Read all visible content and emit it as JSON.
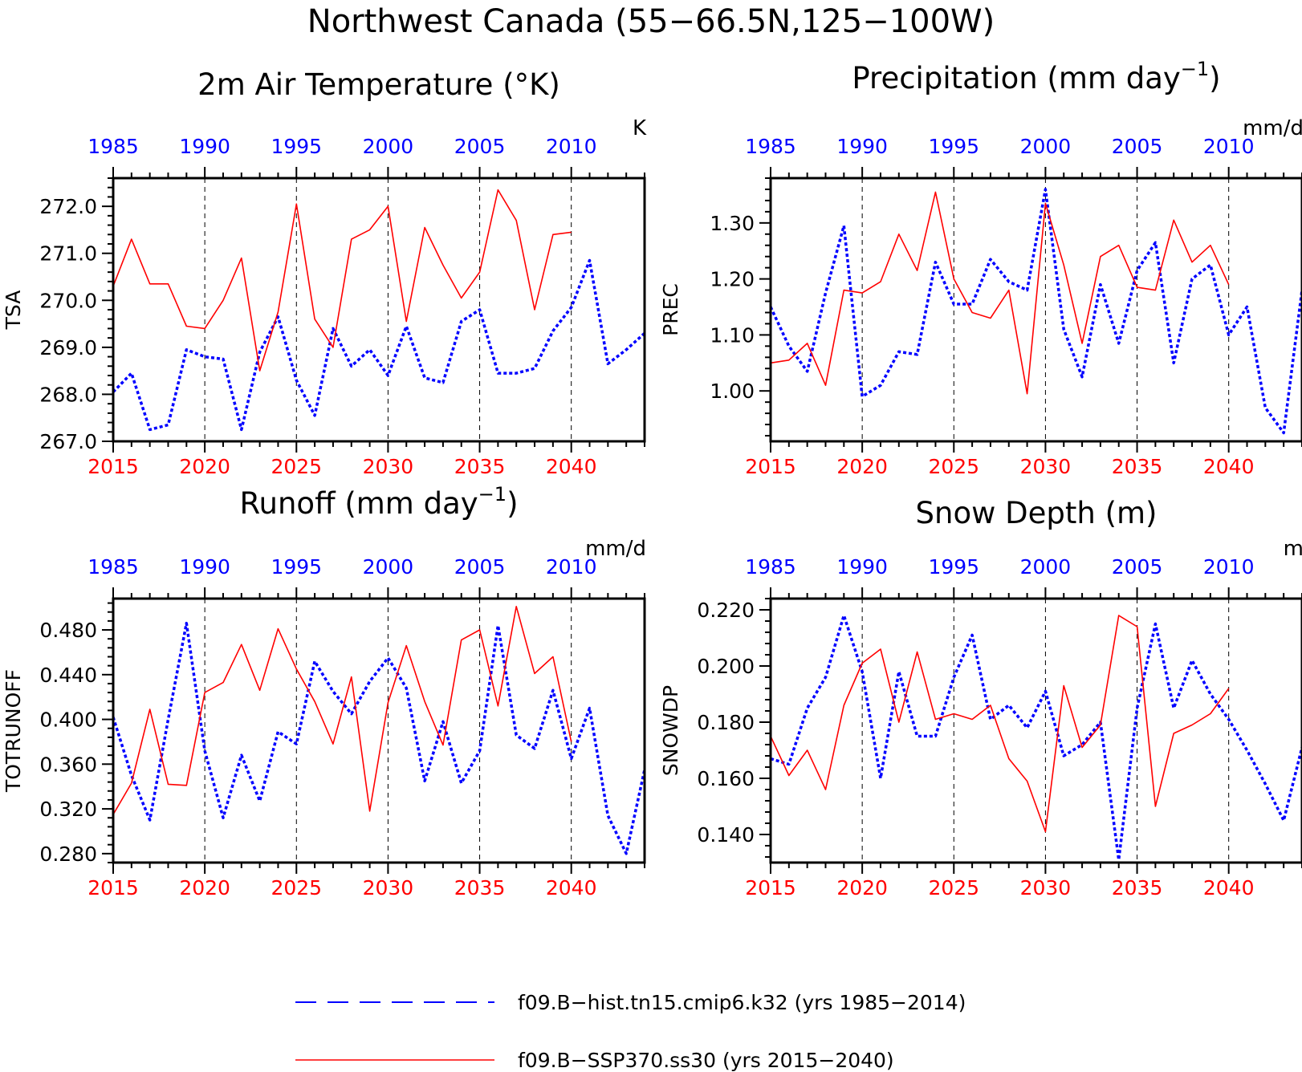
{
  "figure": {
    "title": "Northwest Canada (55−66.5N,125−100W)",
    "legend": {
      "placement": "bottom",
      "entries": [
        {
          "label": "f09.B−hist.tn15.cmip6.k32 (yrs 1985−2014)",
          "color": "#0000ff",
          "style": "dashed"
        },
        {
          "label": "f09.B−SSP370.ss30 (yrs 2015−2040)",
          "color": "#ff0000",
          "style": "solid"
        }
      ]
    }
  },
  "colors": {
    "historical": "#0000ff",
    "future": "#ff0000",
    "axes": "#000000"
  },
  "chart_data": [
    {
      "type": "line",
      "title": "2m Air Temperature (°K)",
      "title_sup": "",
      "title_suffix": "",
      "units": "K",
      "ylabel": "TSA",
      "ylim": [
        267.0,
        272.6
      ],
      "yticks": [
        267.0,
        268.0,
        269.0,
        270.0,
        271.0,
        272.0
      ],
      "ytick_labels": [
        "267.0",
        "268.0",
        "269.0",
        "270.0",
        "271.0",
        "272.0"
      ],
      "grid": "vertical dashed every 5 years",
      "x_bottom": {
        "range": [
          2015,
          2044
        ],
        "ticks": [
          2015,
          2020,
          2025,
          2030,
          2035,
          2040
        ],
        "color": "#ff0000"
      },
      "x_top": {
        "range": [
          1985,
          2014
        ],
        "ticks": [
          1985,
          1990,
          1995,
          2000,
          2005,
          2010
        ],
        "color": "#0000ff"
      },
      "series": [
        {
          "years": "1985-2014",
          "color": "#0000ff",
          "style": "dotted",
          "values": [
            268.05,
            268.45,
            267.25,
            267.35,
            268.95,
            268.8,
            268.75,
            267.25,
            268.9,
            269.65,
            268.3,
            267.55,
            269.4,
            268.6,
            268.95,
            268.4,
            269.45,
            268.35,
            268.25,
            269.55,
            269.8,
            268.45,
            268.45,
            268.55,
            269.35,
            269.85,
            270.85,
            268.65,
            268.95,
            269.3
          ]
        },
        {
          "years": "2015-2040",
          "color": "#ff0000",
          "style": "solid",
          "values": [
            270.3,
            271.3,
            270.35,
            270.35,
            269.45,
            269.4,
            270.0,
            270.9,
            268.5,
            269.75,
            272.05,
            269.6,
            269.0,
            271.3,
            271.5,
            272.0,
            269.55,
            271.55,
            270.75,
            270.05,
            270.6,
            272.35,
            271.7,
            269.8,
            271.4,
            271.45
          ]
        }
      ]
    },
    {
      "type": "line",
      "title": "Precipitation (mm day",
      "title_sup": "−1",
      "title_suffix": ")",
      "units": "mm/d",
      "ylabel": "PREC",
      "ylim": [
        0.91,
        1.38
      ],
      "yticks": [
        1.0,
        1.1,
        1.2,
        1.3
      ],
      "ytick_labels": [
        "1.00",
        "1.10",
        "1.20",
        "1.30"
      ],
      "grid": "vertical dashed every 5 years",
      "x_bottom": {
        "range": [
          2015,
          2044
        ],
        "ticks": [
          2015,
          2020,
          2025,
          2030,
          2035,
          2040
        ],
        "color": "#ff0000"
      },
      "x_top": {
        "range": [
          1985,
          2014
        ],
        "ticks": [
          1985,
          1990,
          1995,
          2000,
          2005,
          2010
        ],
        "color": "#0000ff"
      },
      "series": [
        {
          "years": "1985-2014",
          "color": "#0000ff",
          "style": "dotted",
          "values": [
            1.15,
            1.08,
            1.035,
            1.175,
            1.295,
            0.99,
            1.01,
            1.07,
            1.065,
            1.23,
            1.155,
            1.155,
            1.235,
            1.195,
            1.18,
            1.36,
            1.11,
            1.025,
            1.19,
            1.085,
            1.215,
            1.265,
            1.05,
            1.2,
            1.225,
            1.1,
            1.15,
            0.97,
            0.925,
            1.18
          ]
        },
        {
          "years": "2015-2040",
          "color": "#ff0000",
          "style": "solid",
          "values": [
            1.05,
            1.055,
            1.085,
            1.01,
            1.18,
            1.175,
            1.195,
            1.28,
            1.215,
            1.355,
            1.2,
            1.14,
            1.13,
            1.18,
            0.995,
            1.335,
            1.225,
            1.085,
            1.24,
            1.26,
            1.185,
            1.18,
            1.305,
            1.23,
            1.26,
            1.19
          ]
        }
      ]
    },
    {
      "type": "line",
      "title": "Runoff (mm day",
      "title_sup": "−1",
      "title_suffix": ")",
      "units": "mm/d",
      "ylabel": "TOTRUNOFF",
      "ylim": [
        0.272,
        0.508
      ],
      "yticks": [
        0.28,
        0.32,
        0.36,
        0.4,
        0.44,
        0.48
      ],
      "ytick_labels": [
        "0.280",
        "0.320",
        "0.360",
        "0.400",
        "0.440",
        "0.480"
      ],
      "grid": "vertical dashed every 5 years",
      "x_bottom": {
        "range": [
          2015,
          2044
        ],
        "ticks": [
          2015,
          2020,
          2025,
          2030,
          2035,
          2040
        ],
        "color": "#ff0000"
      },
      "x_top": {
        "range": [
          1985,
          2014
        ],
        "ticks": [
          1985,
          1990,
          1995,
          2000,
          2005,
          2010
        ],
        "color": "#0000ff"
      },
      "series": [
        {
          "years": "1985-2014",
          "color": "#0000ff",
          "style": "dotted",
          "values": [
            0.402,
            0.35,
            0.31,
            0.4,
            0.486,
            0.372,
            0.312,
            0.368,
            0.327,
            0.389,
            0.378,
            0.452,
            0.425,
            0.405,
            0.434,
            0.455,
            0.428,
            0.345,
            0.398,
            0.343,
            0.372,
            0.484,
            0.386,
            0.374,
            0.426,
            0.365,
            0.41,
            0.314,
            0.28,
            0.355
          ]
        },
        {
          "years": "2015-2040",
          "color": "#ff0000",
          "style": "solid",
          "values": [
            0.315,
            0.343,
            0.409,
            0.342,
            0.341,
            0.424,
            0.433,
            0.467,
            0.426,
            0.481,
            0.445,
            0.416,
            0.378,
            0.438,
            0.318,
            0.415,
            0.466,
            0.416,
            0.377,
            0.471,
            0.48,
            0.412,
            0.501,
            0.441,
            0.456,
            0.38
          ]
        }
      ]
    },
    {
      "type": "line",
      "title": "Snow Depth (m)",
      "title_sup": "",
      "title_suffix": "",
      "units": "m",
      "ylabel": "SNOWDP",
      "ylim": [
        0.13,
        0.224
      ],
      "yticks": [
        0.14,
        0.16,
        0.18,
        0.2,
        0.22
      ],
      "ytick_labels": [
        "0.140",
        "0.160",
        "0.180",
        "0.200",
        "0.220"
      ],
      "grid": "vertical dashed every 5 years",
      "x_bottom": {
        "range": [
          2015,
          2044
        ],
        "ticks": [
          2015,
          2020,
          2025,
          2030,
          2035,
          2040
        ],
        "color": "#ff0000"
      },
      "x_top": {
        "range": [
          1985,
          2014
        ],
        "ticks": [
          1985,
          1990,
          1995,
          2000,
          2005,
          2010
        ],
        "color": "#0000ff"
      },
      "series": [
        {
          "years": "1985-2014",
          "color": "#0000ff",
          "style": "dotted",
          "values": [
            0.167,
            0.165,
            0.185,
            0.196,
            0.218,
            0.198,
            0.16,
            0.198,
            0.175,
            0.175,
            0.196,
            0.211,
            0.181,
            0.186,
            0.178,
            0.191,
            0.168,
            0.172,
            0.18,
            0.131,
            0.185,
            0.215,
            0.185,
            0.202,
            0.19,
            0.181,
            0.17,
            0.158,
            0.145,
            0.171
          ]
        },
        {
          "years": "2015-2040",
          "color": "#ff0000",
          "style": "solid",
          "values": [
            0.175,
            0.161,
            0.17,
            0.156,
            0.186,
            0.201,
            0.206,
            0.18,
            0.205,
            0.181,
            0.183,
            0.181,
            0.186,
            0.167,
            0.159,
            0.141,
            0.193,
            0.171,
            0.179,
            0.218,
            0.214,
            0.15,
            0.176,
            0.179,
            0.183,
            0.192
          ]
        }
      ]
    }
  ]
}
